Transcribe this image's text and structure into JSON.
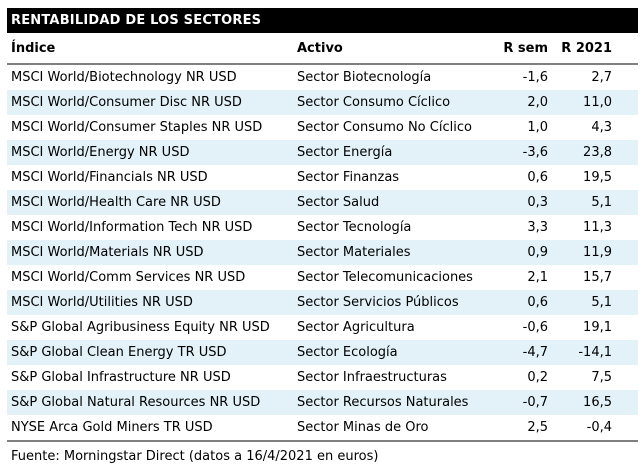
{
  "title": "RENTABILIDAD DE LOS SECTORES",
  "columns": {
    "indice": "Índice",
    "activo": "Activo",
    "r_sem": "R sem",
    "r_2021": "R 2021"
  },
  "rows": [
    {
      "indice": "MSCI World/Biotechnology NR USD",
      "activo": "Sector Biotecnología",
      "r_sem": "-1,6",
      "r_2021": "2,7"
    },
    {
      "indice": "MSCI World/Consumer Disc NR USD",
      "activo": "Sector Consumo Cíclico",
      "r_sem": "2,0",
      "r_2021": "11,0"
    },
    {
      "indice": "MSCI World/Consumer Staples NR USD",
      "activo": "Sector Consumo No Cíclico",
      "r_sem": "1,0",
      "r_2021": "4,3"
    },
    {
      "indice": "MSCI World/Energy NR USD",
      "activo": "Sector Energía",
      "r_sem": "-3,6",
      "r_2021": "23,8"
    },
    {
      "indice": "MSCI World/Financials NR USD",
      "activo": "Sector Finanzas",
      "r_sem": "0,6",
      "r_2021": "19,5"
    },
    {
      "indice": "MSCI World/Health Care NR USD",
      "activo": "Sector Salud",
      "r_sem": "0,3",
      "r_2021": "5,1"
    },
    {
      "indice": "MSCI World/Information Tech NR USD",
      "activo": "Sector Tecnología",
      "r_sem": "3,3",
      "r_2021": "11,3"
    },
    {
      "indice": "MSCI World/Materials NR USD",
      "activo": "Sector Materiales",
      "r_sem": "0,9",
      "r_2021": "11,9"
    },
    {
      "indice": "MSCI World/Comm Services NR USD",
      "activo": "Sector Telecomunicaciones",
      "r_sem": "2,1",
      "r_2021": "15,7"
    },
    {
      "indice": "MSCI World/Utilities NR USD",
      "activo": "Sector Servicios Públicos",
      "r_sem": "0,6",
      "r_2021": "5,1"
    },
    {
      "indice": "S&P Global Agribusiness Equity NR USD",
      "activo": "Sector Agricultura",
      "r_sem": "-0,6",
      "r_2021": "19,1"
    },
    {
      "indice": "S&P Global Clean Energy TR USD",
      "activo": "Sector Ecología",
      "r_sem": "-4,7",
      "r_2021": "-14,1"
    },
    {
      "indice": "S&P Global Infrastructure NR USD",
      "activo": "Sector Infraestructuras",
      "r_sem": "0,2",
      "r_2021": "7,5"
    },
    {
      "indice": "S&P Global Natural Resources NR USD",
      "activo": "Sector Recursos Naturales",
      "r_sem": "-0,7",
      "r_2021": "16,5"
    },
    {
      "indice": "NYSE Arca Gold Miners TR USD",
      "activo": "Sector Minas de Oro",
      "r_sem": "2,5",
      "r_2021": "-0,4"
    }
  ],
  "footer": "Fuente: Morningstar Direct (datos a 16/4/2021 en euros)",
  "colors": {
    "title_bg": "#000000",
    "title_text": "#ffffff",
    "row_alt_bg": "#e2f2f8",
    "rule": "#7f7f7f",
    "text": "#000000"
  }
}
